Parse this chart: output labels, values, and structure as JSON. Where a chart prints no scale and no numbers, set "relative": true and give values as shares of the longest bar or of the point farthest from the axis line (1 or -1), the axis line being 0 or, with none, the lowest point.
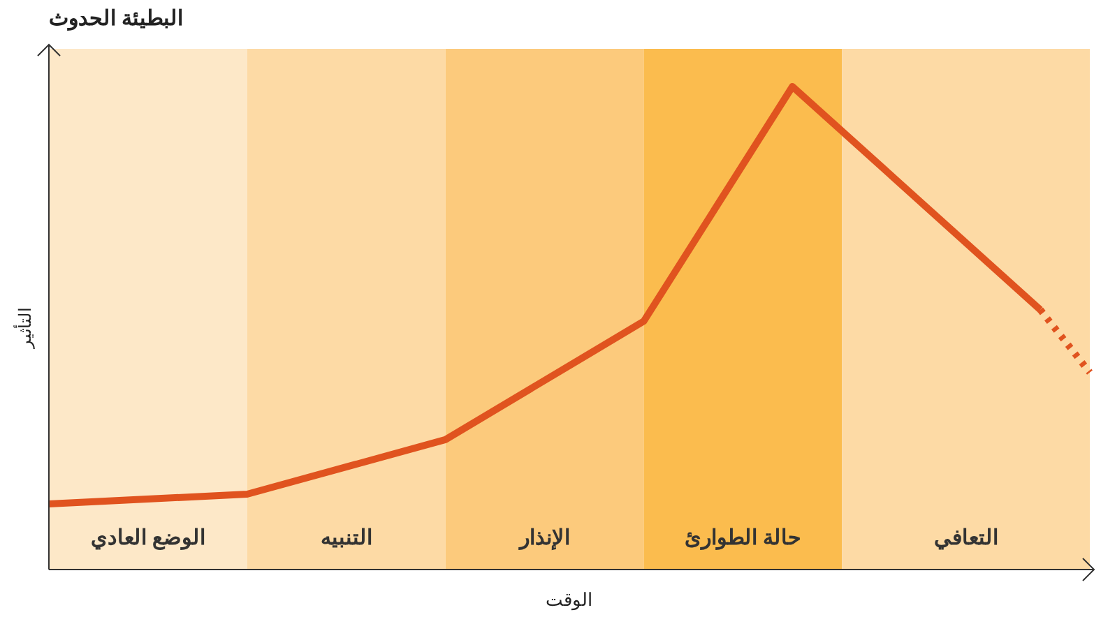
{
  "chart_data": {
    "type": "line",
    "title": "البطيئة الحدوث",
    "xlabel": "الوقت",
    "ylabel": "التأثير",
    "relative": true,
    "categories": [
      null,
      null,
      null,
      null,
      null,
      null,
      null,
      null,
      null,
      null,
      null,
      null,
      null,
      null,
      null,
      null,
      null,
      null,
      null,
      null,
      null,
      null
    ],
    "annotations": [
      "الوضع العادي",
      "التنبيه",
      "الإنذار",
      "حالة الطوارئ",
      "التعافي"
    ],
    "series": [
      {
        "color": "#e0531f",
        "line_style": "solid",
        "values": [
          0.136,
          null,
          null,
          null,
          0.156,
          null,
          null,
          null,
          0.269,
          null,
          null,
          null,
          0.514,
          null,
          null,
          1,
          null,
          null,
          null,
          null,
          0.538,
          null
        ]
      },
      {
        "color": "#e0531f",
        "line_style": "dotted",
        "values": [
          null,
          null,
          null,
          null,
          null,
          null,
          null,
          null,
          null,
          null,
          null,
          null,
          null,
          null,
          null,
          null,
          null,
          null,
          null,
          null,
          0.538,
          0.408
        ]
      }
    ]
  }
}
